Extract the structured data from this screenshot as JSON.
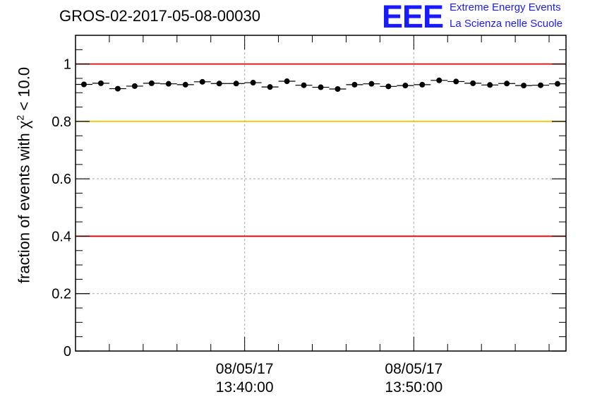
{
  "header": {
    "title": "GROS-02-2017-05-08-00030",
    "logo_text": "EEE",
    "logo_line1": "Extreme Energy Events",
    "logo_line2": "La Scienza nelle Scuole"
  },
  "colors": {
    "red_line": "#e00000",
    "yellow_line": "#ffc000",
    "logo": "#1a1aff"
  },
  "chart_data": {
    "type": "scatter",
    "title": "GROS-02-2017-05-08-00030",
    "ylabel_prefix": "fraction of events with χ",
    "ylabel_sup": "2",
    "ylabel_suffix": " < 10.0",
    "xlabel": "",
    "x_unit": "minutes",
    "x_ticklabels": [
      {
        "x": 13.6667,
        "date": "08/05/17",
        "time": "13:40:00"
      },
      {
        "x": 13.8333,
        "date": "08/05/17",
        "time": "13:50:00"
      }
    ],
    "ylim": [
      0,
      1.1
    ],
    "yticks": [
      0,
      0.2,
      0.4,
      0.6,
      0.8,
      1
    ],
    "ytick_labels": [
      "0",
      "0.2",
      "0.4",
      "0.6",
      "0.8",
      "1"
    ],
    "grid": true,
    "reference_lines": [
      {
        "y": 1.0,
        "color": "#e00000"
      },
      {
        "y": 0.8,
        "color": "#ffc000"
      },
      {
        "y": 0.4,
        "color": "#e00000"
      }
    ],
    "x_times": [
      "13:30:30",
      "13:31:30",
      "13:32:30",
      "13:33:30",
      "13:34:30",
      "13:35:30",
      "13:36:30",
      "13:37:30",
      "13:38:30",
      "13:39:30",
      "13:40:30",
      "13:41:30",
      "13:42:30",
      "13:43:30",
      "13:44:30",
      "13:45:30",
      "13:46:30",
      "13:47:30",
      "13:48:30",
      "13:49:30",
      "13:50:30",
      "13:51:30",
      "13:52:30",
      "13:53:30",
      "13:54:30",
      "13:55:30",
      "13:56:30",
      "13:57:30",
      "13:58:30"
    ],
    "x_err_seconds": 30,
    "values": [
      0.929,
      0.933,
      0.914,
      0.923,
      0.933,
      0.931,
      0.928,
      0.938,
      0.932,
      0.932,
      0.935,
      0.92,
      0.94,
      0.926,
      0.919,
      0.913,
      0.928,
      0.931,
      0.922,
      0.925,
      0.928,
      0.943,
      0.939,
      0.933,
      0.927,
      0.932,
      0.925,
      0.926,
      0.931
    ]
  }
}
